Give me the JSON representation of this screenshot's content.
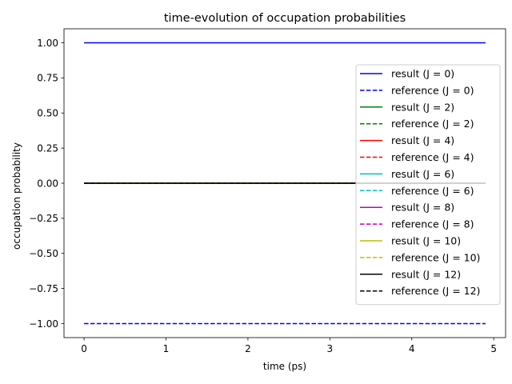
{
  "chart_data": {
    "type": "line",
    "title": "time-evolution of occupation probabilities",
    "xlabel": "time (ps)",
    "ylabel": "occupation probability",
    "xlim": [
      -0.245,
      5.145
    ],
    "ylim": [
      -1.1,
      1.1
    ],
    "xticks": [
      0,
      1,
      2,
      3,
      4,
      5
    ],
    "xtick_labels": [
      "0",
      "1",
      "2",
      "3",
      "4",
      "5"
    ],
    "yticks": [
      1.0,
      0.75,
      0.5,
      0.25,
      0.0,
      -0.25,
      -0.5,
      -0.75,
      -1.0
    ],
    "ytick_labels": [
      "1.00",
      "0.75",
      "0.50",
      "0.25",
      "0.00",
      "−0.25",
      "−0.50",
      "−0.75",
      "−1.00"
    ],
    "grid": false,
    "legend_position": "right",
    "x": [
      0,
      4.9
    ],
    "series": [
      {
        "name": "result (J = 0)",
        "color": "#0000ff",
        "dash": "solid",
        "values": [
          1.0,
          1.0
        ]
      },
      {
        "name": "reference (J = 0)",
        "color": "#0000ff",
        "dash": "dashed",
        "values": [
          -1.0,
          -1.0
        ]
      },
      {
        "name": "result (J = 2)",
        "color": "#008000",
        "dash": "solid",
        "values": [
          0.0,
          0.0
        ]
      },
      {
        "name": "reference (J = 2)",
        "color": "#008000",
        "dash": "dashed",
        "values": [
          0.0,
          0.0
        ]
      },
      {
        "name": "result (J = 4)",
        "color": "#ff0000",
        "dash": "solid",
        "values": [
          0.0,
          0.0
        ]
      },
      {
        "name": "reference (J = 4)",
        "color": "#ff0000",
        "dash": "dashed",
        "values": [
          0.0,
          0.0
        ]
      },
      {
        "name": "result (J = 6)",
        "color": "#00bfbf",
        "dash": "solid",
        "values": [
          0.0,
          0.0
        ]
      },
      {
        "name": "reference (J = 6)",
        "color": "#00bfbf",
        "dash": "dashed",
        "values": [
          0.0,
          0.0
        ]
      },
      {
        "name": "result (J = 8)",
        "color": "#bf00bf",
        "dash": "solid",
        "values": [
          0.0,
          0.0
        ]
      },
      {
        "name": "reference (J = 8)",
        "color": "#bf00bf",
        "dash": "dashed",
        "values": [
          0.0,
          0.0
        ]
      },
      {
        "name": "result (J = 10)",
        "color": "#bfbf00",
        "dash": "solid",
        "values": [
          0.0,
          0.0
        ]
      },
      {
        "name": "reference (J = 10)",
        "color": "#bfbf00",
        "dash": "dashed",
        "values": [
          0.0,
          0.0
        ]
      },
      {
        "name": "result (J = 12)",
        "color": "#000000",
        "dash": "solid",
        "values": [
          0.0,
          0.0
        ]
      },
      {
        "name": "reference (J = 12)",
        "color": "#000000",
        "dash": "dashed",
        "values": [
          0.0,
          0.0
        ]
      }
    ]
  }
}
